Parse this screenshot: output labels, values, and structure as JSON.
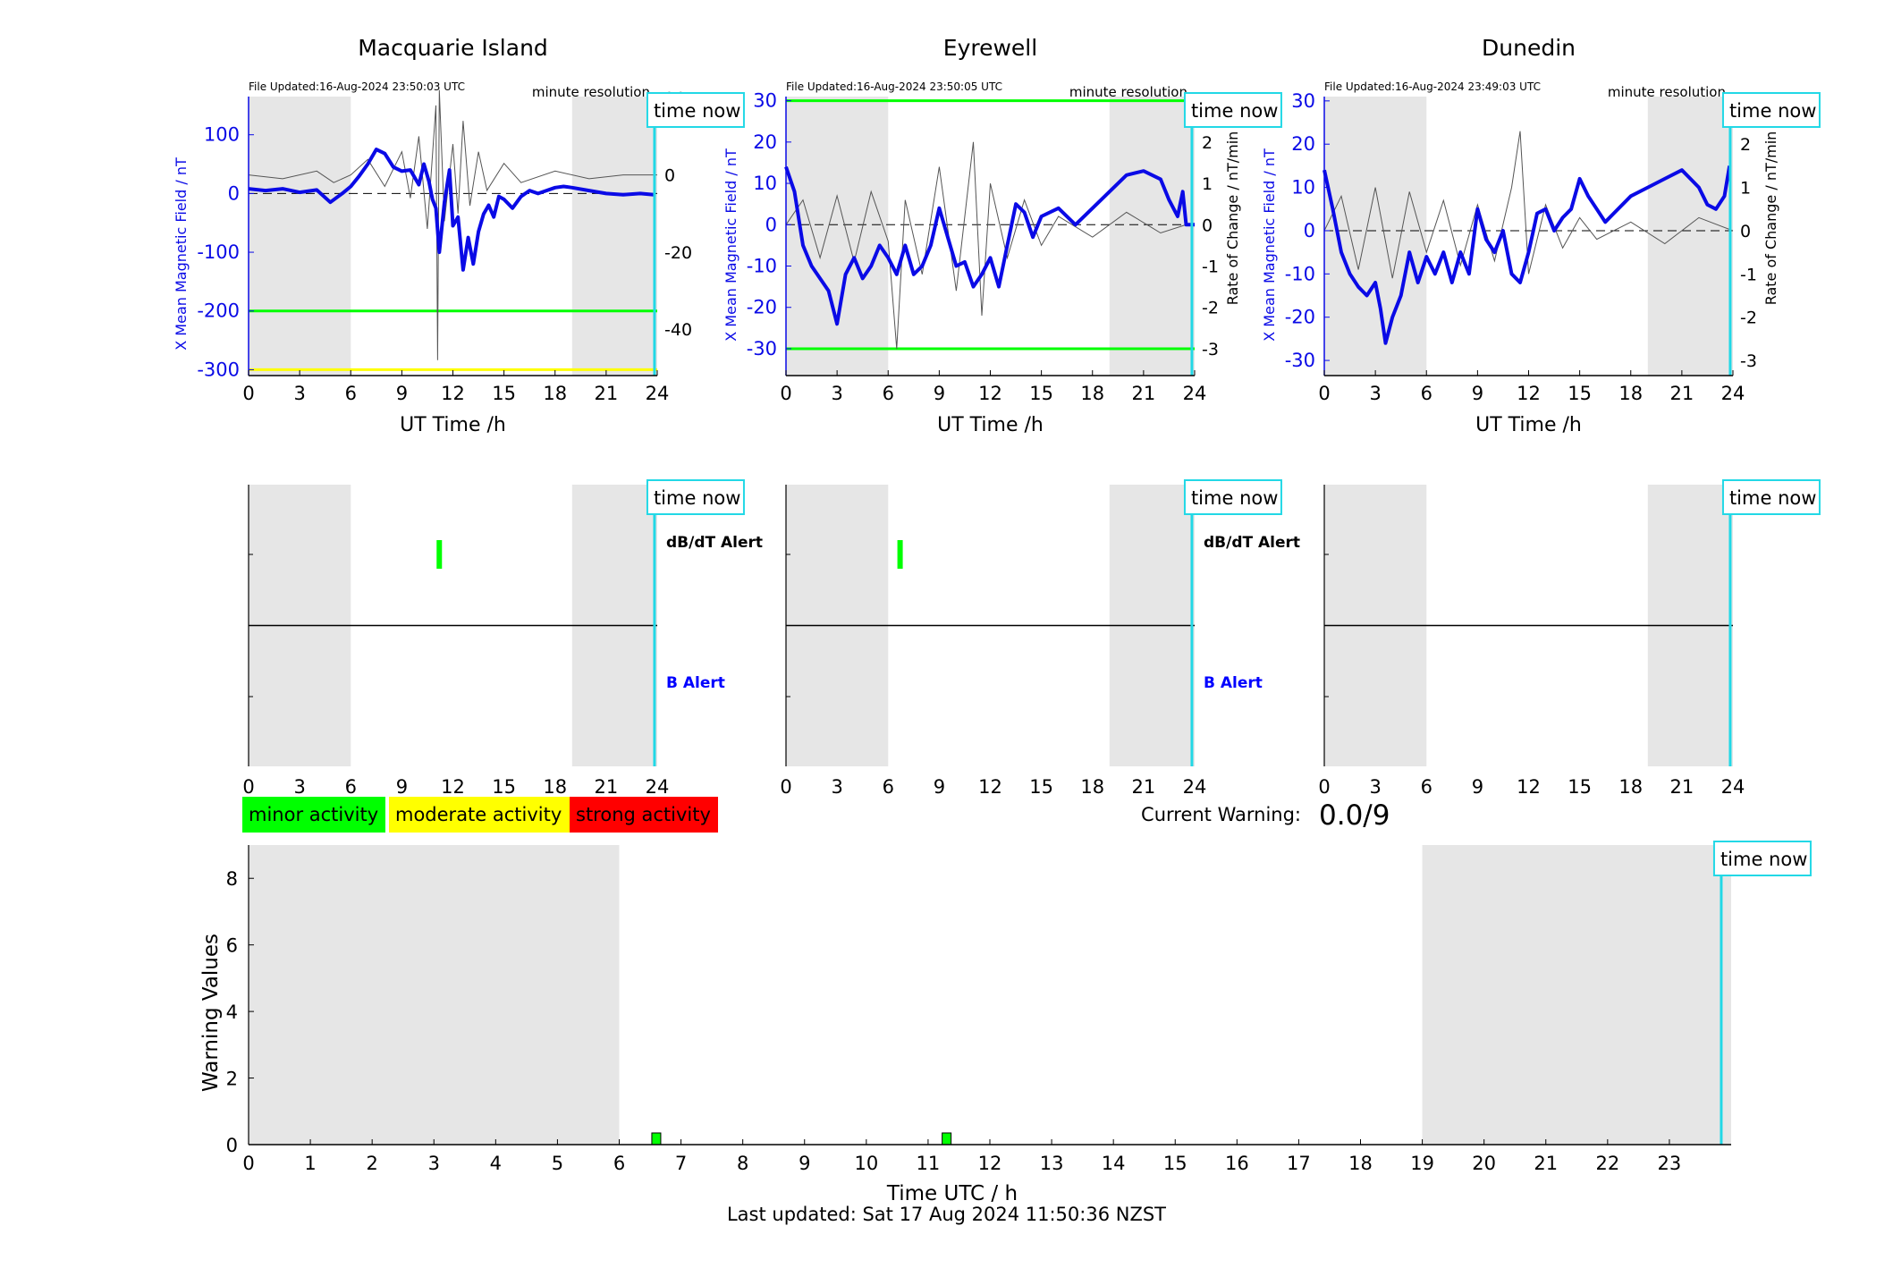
{
  "colors": {
    "field_line": "#0a0ae6",
    "rate_line": "#555555",
    "night_shade": "#e6e6e6",
    "time_now": "#22d8e6",
    "minor": "#00ff00",
    "moderate": "#ffff00",
    "strong": "#ff0000",
    "b_alert_label": "#0000ff"
  },
  "labels": {
    "file_updated_prefix": "File Updated:",
    "resolution": "minute resolution",
    "time_now": "time now",
    "x_axis": "UT Time /h",
    "y_left": "X Mean Magnetic Field / nT",
    "y_right": "Rate of Change / nT/min",
    "dbdt_alert": "dB/dT Alert",
    "b_alert": "B Alert",
    "current_warning_label": "Current Warning:",
    "current_warning_value": "0.0/9",
    "warning_y_axis": "Warning Values",
    "warning_x_axis": "Time UTC / h",
    "last_updated": "Last updated: Sat 17 Aug 2024 11:50:36 NZST"
  },
  "legend": [
    {
      "label": "minor activity",
      "color": "#00ff00"
    },
    {
      "label": "moderate activity",
      "color": "#ffff00"
    },
    {
      "label": "strong activity",
      "color": "#ff0000"
    }
  ],
  "night_hours": [
    [
      0,
      6
    ],
    [
      19,
      24
    ]
  ],
  "time_now_hour": 23.84,
  "chart_data": [
    {
      "type": "line",
      "title": "Macquarie Island",
      "file_updated": "16-Aug-2024 23:50:03 UTC",
      "xlabel": "UT Time /h",
      "ylabel": "X Mean Magnetic Field / nT",
      "ylabel_right": "",
      "xlim": [
        0,
        24
      ],
      "xticks": [
        0,
        3,
        6,
        9,
        12,
        15,
        18,
        21,
        24
      ],
      "ylim": [
        -310,
        165
      ],
      "yticks": [
        100,
        0,
        -100,
        -200,
        -300
      ],
      "ylim_right": [
        -52,
        20.3
      ],
      "yticks_right": [
        20,
        0,
        -20,
        -40
      ],
      "threshold_lines": [
        {
          "y": -200,
          "color": "#00ff00"
        },
        {
          "y": -300,
          "color": "#ffff00"
        }
      ],
      "field_series": {
        "name": "X Mean Magnetic Field",
        "x": [
          0,
          1,
          2,
          3,
          4,
          4.8,
          5.5,
          6,
          6.5,
          7,
          7.5,
          8,
          8.5,
          9,
          9.5,
          10,
          10.3,
          10.6,
          10.8,
          11,
          11.2,
          11.5,
          11.8,
          12,
          12.3,
          12.6,
          12.9,
          13.2,
          13.5,
          13.8,
          14.1,
          14.4,
          14.7,
          15,
          15.5,
          16,
          16.5,
          17,
          17.5,
          18,
          18.5,
          19,
          20,
          21,
          22,
          23,
          23.8
        ],
        "y": [
          8,
          5,
          8,
          2,
          6,
          -15,
          0,
          12,
          30,
          50,
          75,
          68,
          45,
          38,
          40,
          15,
          50,
          20,
          -10,
          -25,
          -100,
          -15,
          40,
          -55,
          -40,
          -130,
          -75,
          -120,
          -65,
          -35,
          -20,
          -40,
          -5,
          -10,
          -25,
          -5,
          5,
          0,
          5,
          10,
          12,
          10,
          5,
          0,
          -2,
          0,
          -2
        ]
      },
      "rate_series": {
        "name": "Rate of Change",
        "x": [
          0,
          2,
          4,
          5,
          6,
          7,
          8,
          9,
          9.5,
          10,
          10.5,
          11,
          11.1,
          11.2,
          11.5,
          12,
          12.3,
          12.6,
          13,
          13.5,
          14,
          15,
          16,
          18,
          20,
          22,
          24
        ],
        "y": [
          0,
          -1,
          1,
          -2,
          0,
          4,
          -3,
          6,
          -6,
          10,
          -14,
          18,
          -48,
          22,
          -12,
          8,
          -10,
          14,
          -8,
          6,
          -4,
          3,
          -2,
          1,
          -1,
          0,
          0
        ]
      },
      "dbdt_alerts": [
        11.2
      ],
      "b_alerts": [],
      "show_alert_labels": true
    },
    {
      "type": "line",
      "title": "Eyrewell",
      "file_updated": "16-Aug-2024 23:50:05 UTC",
      "xlabel": "UT Time /h",
      "ylabel": "X Mean Magnetic Field / nT",
      "ylabel_right": "Rate of Change / nT/min",
      "xlim": [
        0,
        24
      ],
      "xticks": [
        0,
        3,
        6,
        9,
        12,
        15,
        18,
        21,
        24
      ],
      "ylim": [
        -36.5,
        31
      ],
      "yticks": [
        30,
        20,
        10,
        0,
        -10,
        -20,
        -30
      ],
      "ylim_right": [
        -3.65,
        3.1
      ],
      "yticks_right": [
        3,
        2,
        1,
        0,
        -1,
        -2,
        -3
      ],
      "threshold_lines": [
        {
          "y": 30,
          "color": "#00ff00"
        },
        {
          "y": -30,
          "color": "#00ff00"
        }
      ],
      "field_series": {
        "name": "X Mean Magnetic Field",
        "x": [
          0,
          0.5,
          1,
          1.5,
          2,
          2.5,
          3,
          3.5,
          4,
          4.5,
          5,
          5.5,
          6,
          6.5,
          7,
          7.5,
          8,
          8.5,
          9,
          9.5,
          10,
          10.5,
          11,
          11.5,
          12,
          12.5,
          13,
          13.5,
          14,
          14.5,
          15,
          16,
          17,
          18,
          19,
          20,
          21,
          22,
          22.5,
          23,
          23.3,
          23.5,
          24
        ],
        "y": [
          14,
          8,
          -5,
          -10,
          -13,
          -16,
          -24,
          -12,
          -8,
          -13,
          -10,
          -5,
          -8,
          -12,
          -5,
          -12,
          -10,
          -5,
          4,
          -3,
          -10,
          -9,
          -15,
          -12,
          -8,
          -15,
          -5,
          5,
          3,
          -3,
          2,
          4,
          0,
          4,
          8,
          12,
          13,
          11,
          6,
          2,
          8,
          0,
          0
        ]
      },
      "rate_series": {
        "name": "Rate of Change",
        "x": [
          0,
          1,
          2,
          3,
          4,
          5,
          6,
          6.5,
          7,
          8,
          9,
          10,
          11,
          11.5,
          12,
          13,
          14,
          15,
          16,
          18,
          20,
          22,
          23.5,
          24
        ],
        "y": [
          0,
          0.6,
          -0.8,
          0.7,
          -0.9,
          0.8,
          -0.4,
          -3,
          0.6,
          -1.2,
          1.4,
          -1.6,
          2,
          -2.2,
          1,
          -0.8,
          0.6,
          -0.5,
          0.2,
          -0.3,
          0.3,
          -0.2,
          0,
          0
        ]
      },
      "dbdt_alerts": [
        6.7
      ],
      "b_alerts": [],
      "show_alert_labels": true
    },
    {
      "type": "line",
      "title": "Dunedin",
      "file_updated": "16-Aug-2024 23:49:03 UTC",
      "xlabel": "UT Time /h",
      "ylabel": "X Mean Magnetic Field / nT",
      "ylabel_right": "Rate of Change / nT/min",
      "xlim": [
        0,
        24
      ],
      "xticks": [
        0,
        3,
        6,
        9,
        12,
        15,
        18,
        21,
        24
      ],
      "ylim": [
        -33.5,
        31
      ],
      "yticks": [
        30,
        20,
        10,
        0,
        -10,
        -20,
        -30
      ],
      "ylim_right": [
        -3.35,
        3.1
      ],
      "yticks_right": [
        3,
        2,
        1,
        0,
        -1,
        -2,
        -3
      ],
      "threshold_lines": [],
      "field_series": {
        "name": "X Mean Magnetic Field",
        "x": [
          0,
          0.5,
          1,
          1.5,
          2,
          2.5,
          3,
          3.3,
          3.6,
          4,
          4.5,
          5,
          5.5,
          6,
          6.5,
          7,
          7.5,
          8,
          8.5,
          9,
          9.5,
          10,
          10.5,
          11,
          11.5,
          12,
          12.5,
          13,
          13.5,
          14,
          14.5,
          15,
          15.5,
          16,
          16.5,
          17,
          18,
          19,
          20,
          21,
          21.5,
          22,
          22.5,
          23,
          23.5,
          23.8
        ],
        "y": [
          14,
          5,
          -5,
          -10,
          -13,
          -15,
          -12,
          -18,
          -26,
          -20,
          -15,
          -5,
          -12,
          -6,
          -10,
          -5,
          -12,
          -5,
          -10,
          5,
          -2,
          -5,
          0,
          -10,
          -12,
          -5,
          4,
          5,
          0,
          3,
          5,
          12,
          8,
          5,
          2,
          4,
          8,
          10,
          12,
          14,
          12,
          10,
          6,
          5,
          8,
          15
        ]
      },
      "rate_series": {
        "name": "Rate of Change",
        "x": [
          0,
          1,
          2,
          3,
          4,
          5,
          6,
          7,
          8,
          9,
          10,
          11,
          11.5,
          12,
          13,
          14,
          15,
          16,
          18,
          20,
          22,
          24
        ],
        "y": [
          0,
          0.8,
          -0.9,
          1,
          -1.1,
          0.9,
          -0.5,
          0.7,
          -0.8,
          0.6,
          -0.7,
          1,
          2.3,
          -1,
          0.6,
          -0.4,
          0.3,
          -0.2,
          0.2,
          -0.3,
          0.3,
          0
        ]
      },
      "dbdt_alerts": [],
      "b_alerts": [],
      "show_alert_labels": false
    },
    {
      "type": "bar",
      "title": "",
      "xlabel": "Time UTC / h",
      "ylabel": "Warning Values",
      "xlim": [
        0,
        24
      ],
      "xticks": [
        0,
        1,
        2,
        3,
        4,
        5,
        6,
        7,
        8,
        9,
        10,
        11,
        12,
        13,
        14,
        15,
        16,
        17,
        18,
        19,
        20,
        21,
        22,
        23
      ],
      "ylim": [
        0,
        9
      ],
      "yticks": [
        0,
        2,
        4,
        6,
        8
      ],
      "x": [
        6.6,
        11.3
      ],
      "values": [
        0.35,
        0.35
      ],
      "colors": [
        "#00ff00",
        "#00ff00"
      ]
    }
  ]
}
